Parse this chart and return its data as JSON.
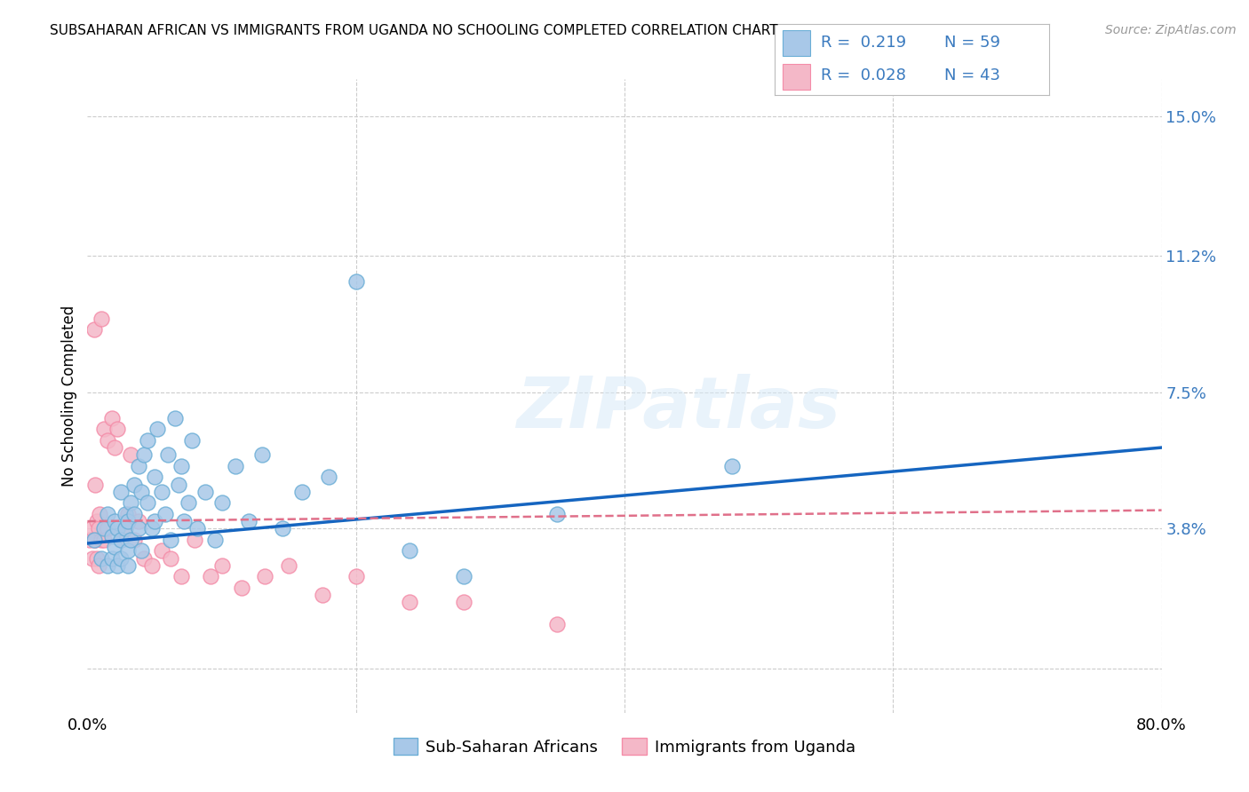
{
  "title": "SUBSAHARAN AFRICAN VS IMMIGRANTS FROM UGANDA NO SCHOOLING COMPLETED CORRELATION CHART",
  "source": "Source: ZipAtlas.com",
  "ylabel_label": "No Schooling Completed",
  "right_yticks": [
    0.0,
    0.038,
    0.075,
    0.112,
    0.15
  ],
  "right_yticklabels": [
    "",
    "3.8%",
    "7.5%",
    "11.2%",
    "15.0%"
  ],
  "xlim": [
    0.0,
    0.8
  ],
  "ylim": [
    -0.012,
    0.16
  ],
  "blue_color": "#a8c8e8",
  "pink_color": "#f4b8c8",
  "blue_edge_color": "#6baed6",
  "pink_edge_color": "#f48ca8",
  "blue_line_color": "#1565c0",
  "pink_line_color": "#e0708a",
  "legend_text_color": "#3a7abf",
  "watermark": "ZIPatlas",
  "blue_scatter_x": [
    0.005,
    0.01,
    0.012,
    0.015,
    0.015,
    0.018,
    0.018,
    0.02,
    0.02,
    0.022,
    0.022,
    0.025,
    0.025,
    0.025,
    0.028,
    0.028,
    0.03,
    0.03,
    0.03,
    0.032,
    0.032,
    0.035,
    0.035,
    0.038,
    0.038,
    0.04,
    0.04,
    0.042,
    0.045,
    0.045,
    0.048,
    0.05,
    0.05,
    0.052,
    0.055,
    0.058,
    0.06,
    0.062,
    0.065,
    0.068,
    0.07,
    0.072,
    0.075,
    0.078,
    0.082,
    0.088,
    0.095,
    0.1,
    0.11,
    0.12,
    0.13,
    0.145,
    0.16,
    0.18,
    0.2,
    0.24,
    0.28,
    0.35,
    0.48
  ],
  "blue_scatter_y": [
    0.035,
    0.03,
    0.038,
    0.042,
    0.028,
    0.036,
    0.03,
    0.04,
    0.033,
    0.038,
    0.028,
    0.035,
    0.048,
    0.03,
    0.042,
    0.038,
    0.04,
    0.032,
    0.028,
    0.045,
    0.035,
    0.05,
    0.042,
    0.055,
    0.038,
    0.048,
    0.032,
    0.058,
    0.045,
    0.062,
    0.038,
    0.052,
    0.04,
    0.065,
    0.048,
    0.042,
    0.058,
    0.035,
    0.068,
    0.05,
    0.055,
    0.04,
    0.045,
    0.062,
    0.038,
    0.048,
    0.035,
    0.045,
    0.055,
    0.04,
    0.058,
    0.038,
    0.048,
    0.052,
    0.105,
    0.032,
    0.025,
    0.042,
    0.055
  ],
  "pink_scatter_x": [
    0.002,
    0.003,
    0.004,
    0.005,
    0.005,
    0.006,
    0.006,
    0.007,
    0.007,
    0.008,
    0.008,
    0.009,
    0.01,
    0.01,
    0.012,
    0.012,
    0.015,
    0.015,
    0.018,
    0.02,
    0.022,
    0.025,
    0.028,
    0.03,
    0.032,
    0.035,
    0.038,
    0.042,
    0.048,
    0.055,
    0.062,
    0.07,
    0.08,
    0.092,
    0.1,
    0.115,
    0.132,
    0.15,
    0.175,
    0.2,
    0.24,
    0.28,
    0.35
  ],
  "pink_scatter_y": [
    0.035,
    0.038,
    0.03,
    0.092,
    0.035,
    0.05,
    0.035,
    0.04,
    0.03,
    0.038,
    0.028,
    0.042,
    0.035,
    0.095,
    0.035,
    0.065,
    0.038,
    0.062,
    0.068,
    0.06,
    0.065,
    0.035,
    0.038,
    0.042,
    0.058,
    0.035,
    0.04,
    0.03,
    0.028,
    0.032,
    0.03,
    0.025,
    0.035,
    0.025,
    0.028,
    0.022,
    0.025,
    0.028,
    0.02,
    0.025,
    0.018,
    0.018,
    0.012
  ],
  "blue_trend_x": [
    0.0,
    0.8
  ],
  "blue_trend_y": [
    0.034,
    0.06
  ],
  "pink_trend_x": [
    0.0,
    0.8
  ],
  "pink_trend_y": [
    0.04,
    0.043
  ]
}
